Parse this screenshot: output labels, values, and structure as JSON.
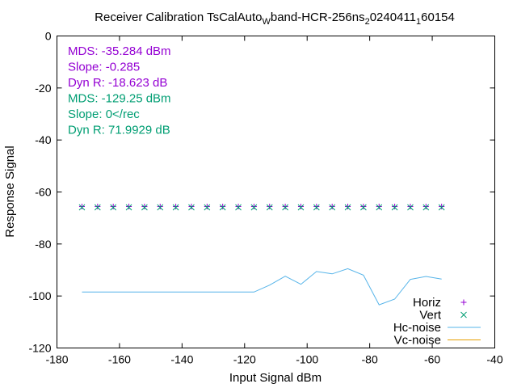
{
  "chart_data": {
    "type": "scatter",
    "title": {
      "base": "Receiver Calibration TsCalAuto",
      "sub1": "W",
      "mid": "band-HCR-256ns",
      "sub2": "2",
      "mid2": "0240411",
      "sub3": "1",
      "tail": "60154"
    },
    "xlabel": "Input Signal dBm",
    "ylabel": "Response Signal",
    "xlim": [
      -180,
      -40
    ],
    "ylim": [
      -120,
      0
    ],
    "xticks": [
      -180,
      -160,
      -140,
      -120,
      -100,
      -80,
      -60,
      -40
    ],
    "yticks": [
      -120,
      -100,
      -80,
      -60,
      -40,
      -20,
      0
    ],
    "annotations": [
      {
        "text": "MDS: -35.284 dBm",
        "color": "#9400d3"
      },
      {
        "text": "Slope: -0.285",
        "color": "#9400d3"
      },
      {
        "text": "Dyn R: -18.623 dB",
        "color": "#9400d3"
      },
      {
        "text": "MDS: -129.25 dBm",
        "color": "#009e73"
      },
      {
        "text": "Slope: 0</rec",
        "color": "#009e73"
      },
      {
        "text": "Dyn R: 71.9929 dB",
        "color": "#009e73"
      }
    ],
    "legend_position": "bottom-right",
    "series": [
      {
        "name": "Horiz",
        "style": "points-plus",
        "color": "#9400d3",
        "x": [
          -172,
          -167,
          -162,
          -157,
          -152,
          -147,
          -142,
          -137,
          -132,
          -127,
          -122,
          -117,
          -112,
          -107,
          -102,
          -97,
          -92,
          -87,
          -82,
          -77,
          -72,
          -67,
          -62,
          -57
        ],
        "y": [
          -65.6,
          -65.6,
          -65.6,
          -65.6,
          -65.6,
          -65.6,
          -65.6,
          -65.6,
          -65.6,
          -65.6,
          -65.6,
          -65.6,
          -65.6,
          -65.6,
          -65.6,
          -65.6,
          -65.6,
          -65.6,
          -65.6,
          -65.6,
          -65.6,
          -65.6,
          -65.6,
          -65.6
        ]
      },
      {
        "name": "Vert",
        "style": "points-x",
        "color": "#009e73",
        "x": [
          -172,
          -167,
          -162,
          -157,
          -152,
          -147,
          -142,
          -137,
          -132,
          -127,
          -122,
          -117,
          -112,
          -107,
          -102,
          -97,
          -92,
          -87,
          -82,
          -77,
          -72,
          -67,
          -62,
          -57
        ],
        "y": [
          -65.9,
          -65.9,
          -65.9,
          -65.9,
          -65.9,
          -65.9,
          -65.9,
          -65.9,
          -65.9,
          -65.9,
          -65.9,
          -65.9,
          -65.9,
          -65.9,
          -65.9,
          -65.9,
          -65.9,
          -65.9,
          -65.9,
          -65.9,
          -65.9,
          -65.9,
          -65.9,
          -65.9
        ]
      },
      {
        "name": "Hc-noise",
        "style": "line",
        "color": "#56b4e9",
        "x": [
          -172,
          -167,
          -162,
          -157,
          -152,
          -147,
          -142,
          -137,
          -132,
          -127,
          -122,
          -117,
          -112,
          -107,
          -102,
          -97,
          -92,
          -87,
          -82,
          -77,
          -72,
          -67,
          -62,
          -57
        ],
        "y": [
          -98.5,
          -98.5,
          -98.5,
          -98.5,
          -98.5,
          -98.5,
          -98.5,
          -98.5,
          -98.5,
          -98.5,
          -98.5,
          -98.5,
          -95.8,
          -92.4,
          -95.5,
          -90.6,
          -91.5,
          -89.5,
          -92.0,
          -103.4,
          -101.2,
          -93.6,
          -92.5,
          -93.5
        ]
      },
      {
        "name": "Vc-noise",
        "style": "line",
        "color": "#e69f00",
        "x": [],
        "y": []
      }
    ]
  }
}
